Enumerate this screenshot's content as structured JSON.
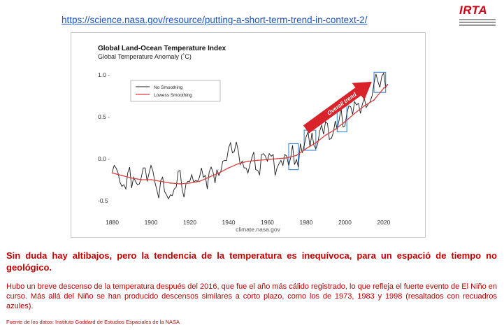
{
  "source_link": "https://science.nasa.gov/resource/putting-a-short-term-trend-in-context-2/",
  "logo": {
    "text": "IRTA",
    "color": "#d0021b"
  },
  "headline": "Sin duda hay altibajos, pero la tendencia de la temperatura es inequívoca, para un espació de tiempo no geológico.",
  "body": "Hubo un breve descenso de la temperatura después del 2016, que fue el año más cálido registrado, lo que refleja el fuerte evento de El Niño en curso. Más allá del Niño se han producido descensos similares a corto plazo, como los de 1973, 1983 y 1998 (resaltados con recuadros azules).",
  "footnote": "Fuente de los datos: Instituto Goddard de Estudios Espaciales de la NASA",
  "chart_data": {
    "type": "line",
    "title": "Global Land-Ocean Temperature Index",
    "subtitle": "Global Temperature Anomaly (˚C)",
    "source_label": "climate.nasa.gov",
    "annotation": "Overall trend",
    "legend_position": "upper-left",
    "grid": false,
    "xlim": [
      1878,
      2024
    ],
    "ylim": [
      -0.6,
      1.1
    ],
    "x_ticks": [
      1880,
      1900,
      1920,
      1940,
      1960,
      1980,
      2000,
      2020
    ],
    "y_ticks": [
      -0.5,
      0.0,
      0.5,
      1.0
    ],
    "y_tick_labels": [
      "-0.5",
      "0.0 -",
      "0.5 -",
      "1.0 -"
    ],
    "highlight_boxes": [
      {
        "x0": 1971,
        "x1": 1976,
        "y0": -0.13,
        "y1": 0.18
      },
      {
        "x0": 1979,
        "x1": 1985,
        "y0": 0.1,
        "y1": 0.34
      },
      {
        "x0": 1996,
        "x1": 2001,
        "y0": 0.32,
        "y1": 0.63
      },
      {
        "x0": 2015,
        "x1": 2021,
        "y0": 0.79,
        "y1": 1.03
      }
    ],
    "colors": {
      "raw": "#1a1a1a",
      "smooth": "#d94040",
      "box": "#4a90d9",
      "arrow": "#d8232a"
    },
    "series": [
      {
        "name": "No Smoothing",
        "x": [
          1880,
          1881,
          1882,
          1883,
          1884,
          1885,
          1886,
          1887,
          1888,
          1889,
          1890,
          1891,
          1892,
          1893,
          1894,
          1895,
          1896,
          1897,
          1898,
          1899,
          1900,
          1901,
          1902,
          1903,
          1904,
          1905,
          1906,
          1907,
          1908,
          1909,
          1910,
          1911,
          1912,
          1913,
          1914,
          1915,
          1916,
          1917,
          1918,
          1919,
          1920,
          1921,
          1922,
          1923,
          1924,
          1925,
          1926,
          1927,
          1928,
          1929,
          1930,
          1931,
          1932,
          1933,
          1934,
          1935,
          1936,
          1937,
          1938,
          1939,
          1940,
          1941,
          1942,
          1943,
          1944,
          1945,
          1946,
          1947,
          1948,
          1949,
          1950,
          1951,
          1952,
          1953,
          1954,
          1955,
          1956,
          1957,
          1958,
          1959,
          1960,
          1961,
          1962,
          1963,
          1964,
          1965,
          1966,
          1967,
          1968,
          1969,
          1970,
          1971,
          1972,
          1973,
          1974,
          1975,
          1976,
          1977,
          1978,
          1979,
          1980,
          1981,
          1982,
          1983,
          1984,
          1985,
          1986,
          1987,
          1988,
          1989,
          1990,
          1991,
          1992,
          1993,
          1994,
          1995,
          1996,
          1997,
          1998,
          1999,
          2000,
          2001,
          2002,
          2003,
          2004,
          2005,
          2006,
          2007,
          2008,
          2009,
          2010,
          2011,
          2012,
          2013,
          2014,
          2015,
          2016,
          2017,
          2018,
          2019,
          2020,
          2021,
          2022
        ],
        "values": [
          -0.16,
          -0.08,
          -0.11,
          -0.17,
          -0.28,
          -0.33,
          -0.31,
          -0.36,
          -0.17,
          -0.1,
          -0.35,
          -0.22,
          -0.27,
          -0.31,
          -0.3,
          -0.22,
          -0.11,
          -0.11,
          -0.27,
          -0.17,
          -0.08,
          -0.15,
          -0.28,
          -0.37,
          -0.47,
          -0.26,
          -0.22,
          -0.39,
          -0.43,
          -0.48,
          -0.43,
          -0.44,
          -0.36,
          -0.34,
          -0.15,
          -0.14,
          -0.36,
          -0.46,
          -0.3,
          -0.27,
          -0.27,
          -0.19,
          -0.28,
          -0.26,
          -0.27,
          -0.22,
          -0.11,
          -0.22,
          -0.2,
          -0.36,
          -0.16,
          -0.1,
          -0.16,
          -0.29,
          -0.13,
          -0.2,
          -0.15,
          -0.03,
          -0.02,
          -0.02,
          0.13,
          0.19,
          0.07,
          0.09,
          0.2,
          0.09,
          -0.07,
          -0.03,
          -0.11,
          -0.11,
          -0.17,
          -0.07,
          0.01,
          0.08,
          -0.13,
          -0.14,
          -0.19,
          0.05,
          0.06,
          0.03,
          -0.03,
          0.06,
          0.03,
          0.05,
          -0.2,
          -0.11,
          -0.06,
          -0.02,
          -0.08,
          0.05,
          0.03,
          -0.08,
          0.01,
          0.16,
          -0.07,
          -0.01,
          -0.1,
          0.18,
          0.07,
          0.16,
          0.26,
          0.32,
          0.14,
          0.31,
          0.16,
          0.12,
          0.18,
          0.33,
          0.4,
          0.29,
          0.44,
          0.42,
          0.23,
          0.24,
          0.31,
          0.45,
          0.35,
          0.46,
          0.61,
          0.38,
          0.39,
          0.54,
          0.63,
          0.62,
          0.53,
          0.68,
          0.64,
          0.66,
          0.54,
          0.65,
          0.72,
          0.61,
          0.65,
          0.68,
          0.75,
          0.9,
          1.01,
          0.92,
          0.85,
          0.98,
          1.02,
          0.85,
          0.89
        ]
      },
      {
        "name": "Lowess Smoothing",
        "x": [
          1880,
          1885,
          1890,
          1895,
          1900,
          1905,
          1910,
          1915,
          1920,
          1925,
          1930,
          1935,
          1940,
          1945,
          1950,
          1955,
          1960,
          1965,
          1970,
          1975,
          1980,
          1985,
          1990,
          1995,
          2000,
          2005,
          2010,
          2015,
          2020,
          2022
        ],
        "values": [
          -0.17,
          -0.2,
          -0.23,
          -0.25,
          -0.25,
          -0.27,
          -0.29,
          -0.3,
          -0.29,
          -0.27,
          -0.22,
          -0.17,
          -0.11,
          -0.06,
          -0.03,
          -0.02,
          -0.01,
          0.0,
          0.01,
          0.04,
          0.12,
          0.19,
          0.28,
          0.35,
          0.44,
          0.54,
          0.63,
          0.7,
          0.84,
          0.88
        ]
      }
    ]
  }
}
